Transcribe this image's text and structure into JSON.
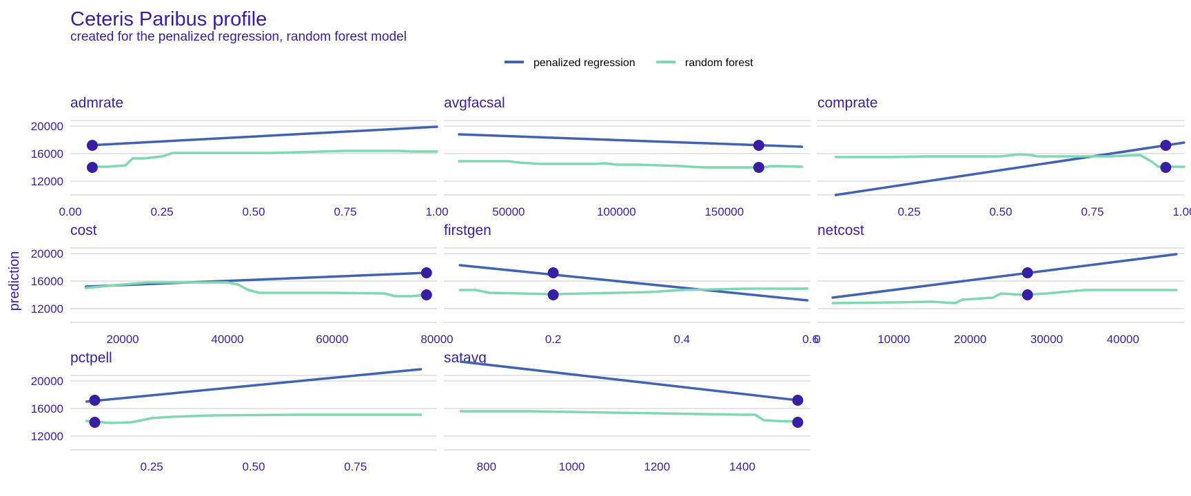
{
  "colors": {
    "text": "#371ea3",
    "grid": "#dcdcdc",
    "penalized_regression": "#4163b0",
    "random_forest": "#7fd8b2",
    "observation": "#371ea3"
  },
  "chart_data": {
    "type": "line",
    "title": "Ceteris Paribus profile",
    "subtitle": "created for the penalized regression, random forest model",
    "ylabel": "prediction",
    "legend": {
      "position": "top",
      "entries": [
        "penalized regression",
        "random forest"
      ]
    },
    "grid": true,
    "ylim": [
      10000,
      22500
    ],
    "y_ticks": [
      12000,
      16000,
      20000
    ],
    "y_tick_labels": [
      "12000",
      "16000",
      "20000"
    ],
    "panels": [
      {
        "name": "admrate",
        "xlim": [
          0,
          1.0
        ],
        "x_ticks": [
          0,
          0.25,
          0.5,
          0.75,
          1.0
        ],
        "x_tick_labels": [
          "0.00",
          "0.25",
          "0.50",
          "0.75",
          "1.00"
        ],
        "show_y_ticks": true,
        "series": [
          {
            "name": "penalized regression",
            "x": [
              0.05,
              1.0
            ],
            "y": [
              17200,
              19900
            ]
          },
          {
            "name": "random forest",
            "x": [
              0.05,
              0.1,
              0.15,
              0.17,
              0.2,
              0.25,
              0.28,
              0.4,
              0.55,
              0.62,
              0.75,
              0.8,
              0.9,
              0.93,
              1.0
            ],
            "y": [
              14100,
              14100,
              14300,
              15300,
              15300,
              15600,
              16100,
              16100,
              16100,
              16200,
              16400,
              16400,
              16400,
              16300,
              16300
            ]
          }
        ],
        "observation": {
          "x": 0.06,
          "y": [
            17200,
            14000
          ]
        }
      },
      {
        "name": "avgfacsal",
        "xlim": [
          20000,
          190000
        ],
        "x_ticks": [
          50000,
          100000,
          150000
        ],
        "x_tick_labels": [
          "50000",
          "100000",
          "150000"
        ],
        "show_y_ticks": false,
        "series": [
          {
            "name": "penalized regression",
            "x": [
              27000,
              186000
            ],
            "y": [
              18800,
              17000
            ]
          },
          {
            "name": "random forest",
            "x": [
              27000,
              50000,
              55000,
              65000,
              90000,
              95000,
              100000,
              110000,
              130000,
              140000,
              160000,
              168000,
              172000,
              186000
            ],
            "y": [
              14900,
              14900,
              14700,
              14500,
              14500,
              14600,
              14400,
              14400,
              14200,
              14000,
              14000,
              14000,
              14200,
              14100
            ]
          }
        ],
        "observation": {
          "x": 166000,
          "y": [
            17200,
            14000
          ]
        }
      },
      {
        "name": "comprate",
        "xlim": [
          0,
          1.0
        ],
        "x_ticks": [
          0.25,
          0.5,
          0.75,
          1.0
        ],
        "x_tick_labels": [
          "0.25",
          "0.50",
          "0.75",
          "1.00"
        ],
        "show_y_ticks": false,
        "series": [
          {
            "name": "penalized regression",
            "x": [
              0.05,
              1.0
            ],
            "y": [
              10000,
              17600
            ]
          },
          {
            "name": "random forest",
            "x": [
              0.05,
              0.2,
              0.3,
              0.5,
              0.55,
              0.58,
              0.6,
              0.8,
              0.88,
              0.91,
              0.93,
              1.0
            ],
            "y": [
              15500,
              15500,
              15600,
              15600,
              15900,
              15800,
              15600,
              15600,
              15800,
              14900,
              14100,
              14100
            ]
          }
        ],
        "observation": {
          "x": 0.95,
          "y": [
            17200,
            14000
          ]
        }
      },
      {
        "name": "cost",
        "xlim": [
          10000,
          80000
        ],
        "x_ticks": [
          20000,
          40000,
          60000,
          80000
        ],
        "x_tick_labels": [
          "20000",
          "40000",
          "60000",
          "80000"
        ],
        "show_y_ticks": true,
        "series": [
          {
            "name": "penalized regression",
            "x": [
              13000,
              78000
            ],
            "y": [
              15200,
              17200
            ]
          },
          {
            "name": "random forest",
            "x": [
              13000,
              20000,
              25000,
              40000,
              42000,
              44000,
              46000,
              60000,
              70000,
              72000,
              75000,
              78000
            ],
            "y": [
              15000,
              15500,
              15800,
              15800,
              15500,
              14700,
              14300,
              14300,
              14200,
              13800,
              13800,
              14000
            ]
          }
        ],
        "observation": {
          "x": 78000,
          "y": [
            17200,
            14000
          ]
        }
      },
      {
        "name": "firstgen",
        "xlim": [
          0.03,
          0.6
        ],
        "x_ticks": [
          0.2,
          0.4,
          0.6
        ],
        "x_tick_labels": [
          "0.2",
          "0.4",
          "0.6"
        ],
        "show_y_ticks": false,
        "series": [
          {
            "name": "penalized regression",
            "x": [
              0.055,
              0.595
            ],
            "y": [
              18300,
              13200
            ]
          },
          {
            "name": "random forest",
            "x": [
              0.055,
              0.08,
              0.1,
              0.15,
              0.2,
              0.25,
              0.3,
              0.35,
              0.4,
              0.45,
              0.5,
              0.595
            ],
            "y": [
              14700,
              14700,
              14300,
              14200,
              14100,
              14200,
              14300,
              14400,
              14700,
              14800,
              14900,
              14900
            ]
          }
        ],
        "observation": {
          "x": 0.2,
          "y": [
            17200,
            14000
          ]
        }
      },
      {
        "name": "netcost",
        "xlim": [
          0,
          48000
        ],
        "x_ticks": [
          0,
          10000,
          20000,
          30000,
          40000
        ],
        "x_tick_labels": [
          "0",
          "10000",
          "20000",
          "30000",
          "40000"
        ],
        "show_y_ticks": false,
        "series": [
          {
            "name": "penalized regression",
            "x": [
              2000,
              47000
            ],
            "y": [
              13600,
              19900
            ]
          },
          {
            "name": "random forest",
            "x": [
              2000,
              10000,
              15000,
              18000,
              19000,
              23000,
              24000,
              27000,
              30000,
              35000,
              47000
            ],
            "y": [
              12800,
              12900,
              13000,
              12800,
              13300,
              13600,
              14200,
              14000,
              14200,
              14700,
              14700
            ]
          }
        ],
        "observation": {
          "x": 27500,
          "y": [
            17200,
            14000
          ]
        }
      },
      {
        "name": "pctpell",
        "xlim": [
          0.05,
          0.95
        ],
        "x_ticks": [
          0.25,
          0.5,
          0.75
        ],
        "x_tick_labels": [
          "0.25",
          "0.50",
          "0.75"
        ],
        "show_y_ticks": true,
        "series": [
          {
            "name": "penalized regression",
            "x": [
              0.09,
              0.91
            ],
            "y": [
              17000,
              21700
            ]
          },
          {
            "name": "random forest",
            "x": [
              0.09,
              0.15,
              0.2,
              0.25,
              0.3,
              0.4,
              0.6,
              0.91
            ],
            "y": [
              14200,
              13900,
              14000,
              14600,
              14800,
              15000,
              15100,
              15100
            ]
          }
        ],
        "observation": {
          "x": 0.11,
          "y": [
            17200,
            14000
          ]
        }
      },
      {
        "name": "satavg",
        "xlim": [
          700,
          1560
        ],
        "x_ticks": [
          800,
          1000,
          1200,
          1400
        ],
        "x_tick_labels": [
          "800",
          "1000",
          "1200",
          "1400"
        ],
        "show_y_ticks": false,
        "series": [
          {
            "name": "penalized regression",
            "x": [
              740,
              1530
            ],
            "y": [
              22800,
              17200
            ]
          },
          {
            "name": "random forest",
            "x": [
              740,
              900,
              1000,
              1100,
              1200,
              1300,
              1400,
              1430,
              1450,
              1480,
              1530
            ],
            "y": [
              15600,
              15600,
              15500,
              15400,
              15300,
              15200,
              15100,
              15100,
              14300,
              14200,
              14100
            ]
          }
        ],
        "observation": {
          "x": 1530,
          "y": [
            17200,
            14000
          ]
        }
      }
    ]
  }
}
